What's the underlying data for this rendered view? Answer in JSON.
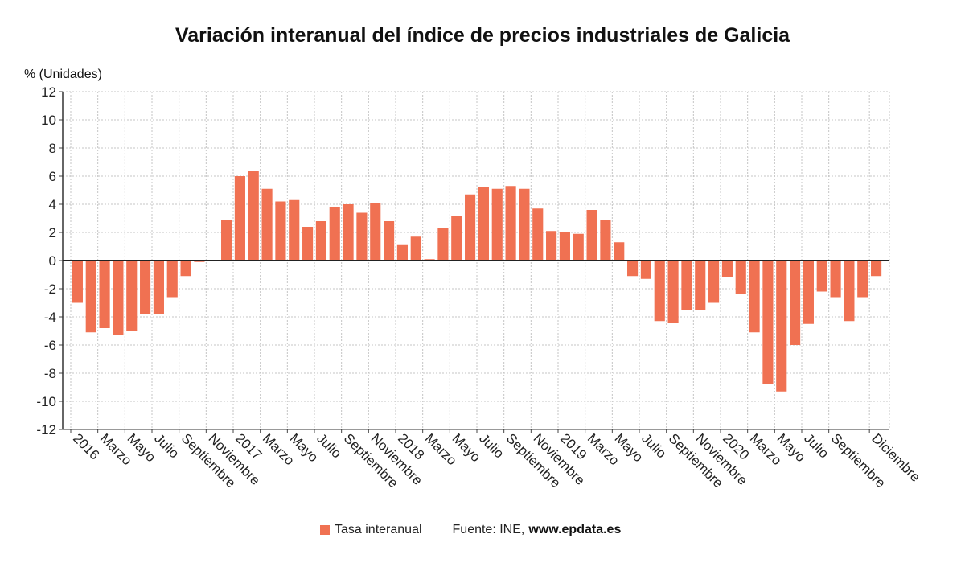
{
  "chart_data": {
    "type": "bar",
    "title": "Variación interanual del índice de precios industriales de Galicia",
    "ylabel": "% (Unidades)",
    "ylim": [
      -12,
      12
    ],
    "yticks": [
      12,
      10,
      8,
      6,
      4,
      2,
      0,
      -2,
      -4,
      -6,
      -8,
      -10,
      -12
    ],
    "grid": true,
    "legend_position": "bottom",
    "x_tick_labels": [
      {
        "index": 0,
        "label": "2016"
      },
      {
        "index": 2,
        "label": "Marzo"
      },
      {
        "index": 4,
        "label": "Mayo"
      },
      {
        "index": 6,
        "label": "Julio"
      },
      {
        "index": 8,
        "label": "Septiembre"
      },
      {
        "index": 10,
        "label": "Noviembre"
      },
      {
        "index": 12,
        "label": "2017"
      },
      {
        "index": 14,
        "label": "Marzo"
      },
      {
        "index": 16,
        "label": "Mayo"
      },
      {
        "index": 18,
        "label": "Julio"
      },
      {
        "index": 20,
        "label": "Septiembre"
      },
      {
        "index": 22,
        "label": "Noviembre"
      },
      {
        "index": 24,
        "label": "2018"
      },
      {
        "index": 26,
        "label": "Marzo"
      },
      {
        "index": 28,
        "label": "Mayo"
      },
      {
        "index": 30,
        "label": "Julio"
      },
      {
        "index": 32,
        "label": "Septiembre"
      },
      {
        "index": 34,
        "label": "Noviembre"
      },
      {
        "index": 36,
        "label": "2019"
      },
      {
        "index": 38,
        "label": "Marzo"
      },
      {
        "index": 40,
        "label": "Mayo"
      },
      {
        "index": 42,
        "label": "Julio"
      },
      {
        "index": 44,
        "label": "Septiembre"
      },
      {
        "index": 46,
        "label": "Noviembre"
      },
      {
        "index": 48,
        "label": "2020"
      },
      {
        "index": 50,
        "label": "Marzo"
      },
      {
        "index": 52,
        "label": "Mayo"
      },
      {
        "index": 54,
        "label": "Julio"
      },
      {
        "index": 56,
        "label": "Septiembre"
      },
      {
        "index": 59,
        "label": "Diciembre"
      }
    ],
    "series": [
      {
        "name": "Tasa interanual",
        "color": "#f07152",
        "values": [
          -3.0,
          -5.1,
          -4.8,
          -5.3,
          -5.0,
          -3.8,
          -3.8,
          -2.6,
          -1.1,
          -0.1,
          0.0,
          2.9,
          6.0,
          6.4,
          5.1,
          4.2,
          4.3,
          2.4,
          2.8,
          3.8,
          4.0,
          3.4,
          4.1,
          2.8,
          1.1,
          1.7,
          0.1,
          2.3,
          3.2,
          4.7,
          5.2,
          5.1,
          5.3,
          5.1,
          3.7,
          2.1,
          2.0,
          1.9,
          3.6,
          2.9,
          1.3,
          -1.1,
          -1.3,
          -4.3,
          -4.4,
          -3.5,
          -3.5,
          -3.0,
          -1.2,
          -2.4,
          -5.1,
          -8.8,
          -9.3,
          -6.0,
          -4.5,
          -2.2,
          -2.6,
          -4.3,
          -2.6,
          -1.1
        ]
      }
    ]
  },
  "legend": {
    "label": "Tasa interanual",
    "color": "#f07152"
  },
  "source": {
    "prefix": "Fuente: INE,",
    "site": "www.epdata.es"
  }
}
